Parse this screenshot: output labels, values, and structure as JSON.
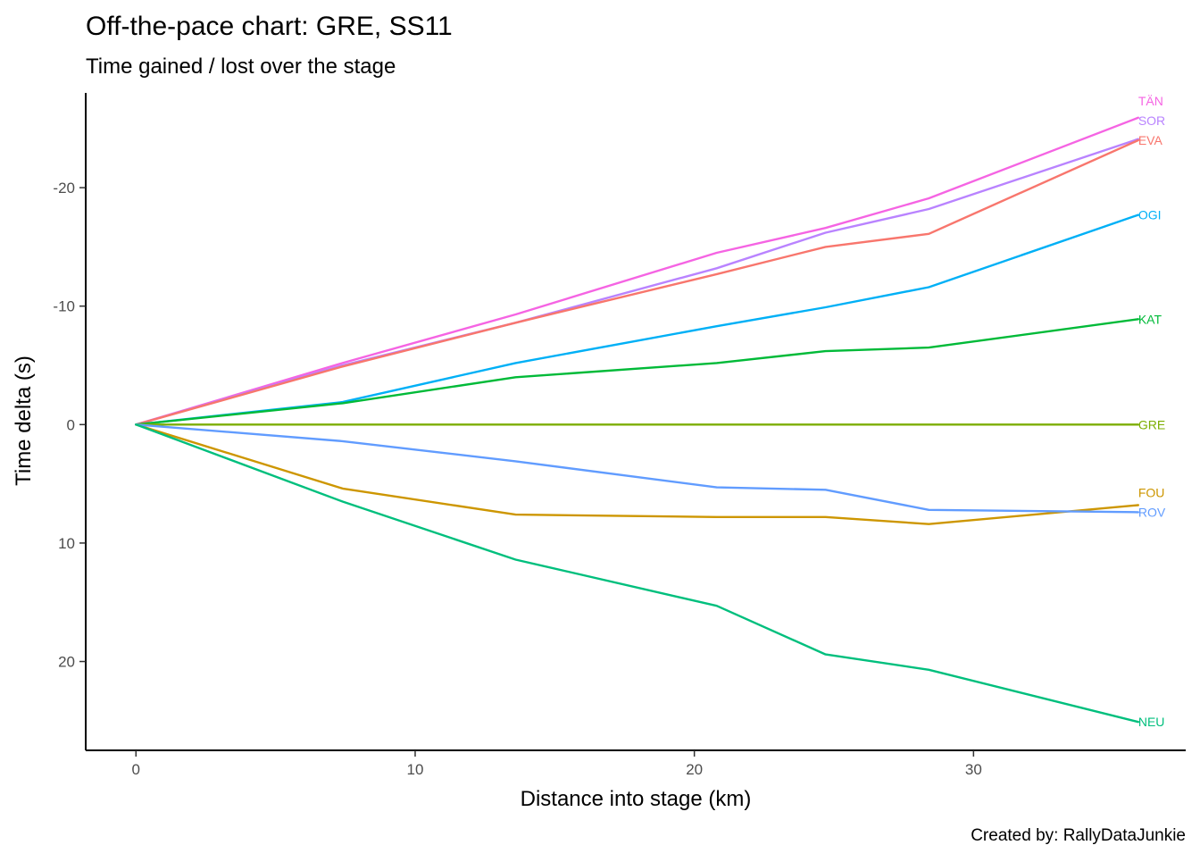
{
  "chart_data": {
    "type": "line",
    "title": "Off-the-pace chart: GRE, SS11",
    "subtitle": "Time gained / lost over the stage",
    "xlabel": "Distance into stage (km)",
    "ylabel": "Time delta (s)",
    "caption": "Created by: RallyDataJunkie",
    "xlim": [
      -1.8,
      37.6
    ],
    "ylim": [
      -28,
      27.5
    ],
    "y_reversed": true,
    "x_ticks": [
      0,
      10,
      20,
      30
    ],
    "x_tick_labels": [
      "0",
      "10",
      "20",
      "30"
    ],
    "y_ticks": [
      -20,
      -10,
      0,
      10,
      20
    ],
    "y_tick_labels": [
      "-20",
      "-10",
      "0",
      "10",
      "20"
    ],
    "grid": false,
    "legend": "none",
    "x": [
      0,
      7.4,
      13.6,
      20.8,
      24.7,
      28.4,
      35.9
    ],
    "series": [
      {
        "name": "TÄN",
        "color": "#f564e3",
        "values": [
          0,
          -5.2,
          -9.3,
          -14.5,
          -16.6,
          -19.1,
          -25.9
        ]
      },
      {
        "name": "SOR",
        "color": "#b983ff",
        "values": [
          0,
          -5.0,
          -8.6,
          -13.2,
          -16.2,
          -18.2,
          -24.1
        ]
      },
      {
        "name": "EVA",
        "color": "#f8766d",
        "values": [
          0,
          -4.9,
          -8.6,
          -12.7,
          -15.0,
          -16.1,
          -24.0
        ]
      },
      {
        "name": "OGI",
        "color": "#00b0f6",
        "values": [
          0,
          -1.9,
          -5.2,
          -8.3,
          -9.9,
          -11.6,
          -17.7
        ]
      },
      {
        "name": "KAT",
        "color": "#00ba38",
        "values": [
          0,
          -1.8,
          -4.0,
          -5.2,
          -6.2,
          -6.5,
          -8.9
        ]
      },
      {
        "name": "GRE",
        "color": "#7cae00",
        "values": [
          0,
          0,
          0,
          0,
          0,
          0,
          0
        ]
      },
      {
        "name": "FOU",
        "color": "#cd9600",
        "values": [
          0,
          5.4,
          7.6,
          7.8,
          7.8,
          8.4,
          6.8
        ]
      },
      {
        "name": "ROV",
        "color": "#619cff",
        "values": [
          0,
          1.4,
          3.1,
          5.3,
          5.5,
          7.2,
          7.4
        ]
      },
      {
        "name": "NEU",
        "color": "#00bf7d",
        "values": [
          0,
          6.5,
          11.4,
          15.3,
          19.4,
          20.7,
          25.1
        ]
      }
    ]
  }
}
